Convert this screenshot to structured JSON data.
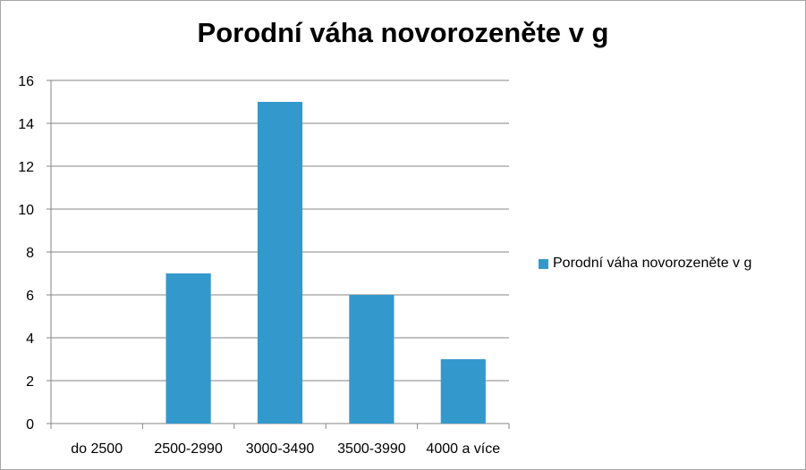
{
  "chart_data": {
    "type": "bar",
    "title": "Porodní váha novorozeněte v g",
    "categories": [
      "do 2500",
      "2500-2990",
      "3000-3490",
      "3500-3990",
      "4000 a více"
    ],
    "series": [
      {
        "name": "Porodní váha novorozeněte v g",
        "values": [
          0,
          7,
          15,
          6,
          3
        ]
      }
    ],
    "ylim": [
      0,
      16
    ],
    "yticks": [
      0,
      2,
      4,
      6,
      8,
      10,
      12,
      14,
      16
    ],
    "grid": true,
    "legend_position": "right",
    "bar_color": "#3399cc"
  }
}
